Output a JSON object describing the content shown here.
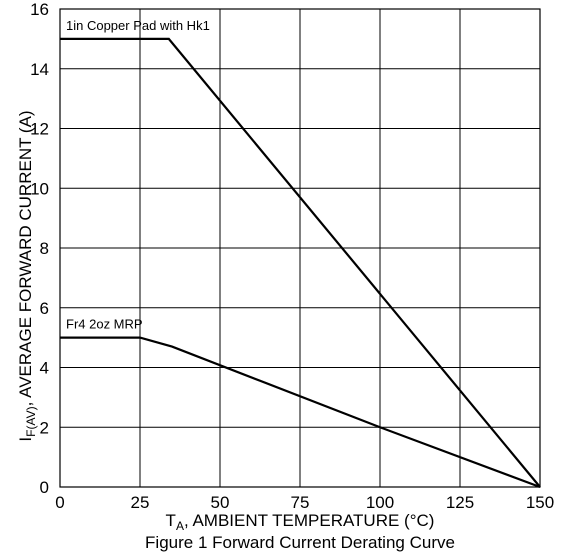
{
  "chart_data": {
    "type": "line",
    "xlabel_main": "T",
    "xlabel_sub": "A",
    "xlabel_rest": ", AMBIENT TEMPERATURE (°C)",
    "ylabel_main": "I",
    "ylabel_sub": "F(AV)",
    "ylabel_rest": ", AVERAGE FORWARD CURRENT (A)",
    "caption": "Figure 1 Forward Current Derating Curve",
    "xlim": [
      0,
      150
    ],
    "ylim": [
      0,
      16
    ],
    "x_ticks": [
      "0",
      "25",
      "50",
      "75",
      "100",
      "125",
      "150"
    ],
    "y_ticks": [
      "0",
      "2",
      "4",
      "6",
      "8",
      "10",
      "12",
      "14",
      "16"
    ],
    "grid": true,
    "series": [
      {
        "name": "1in Copper Pad with Hk1",
        "x": [
          0,
          34,
          150
        ],
        "y": [
          15,
          15,
          0
        ]
      },
      {
        "name": "Fr4 2oz MRP",
        "x": [
          0,
          25,
          35,
          100,
          150
        ],
        "y": [
          5,
          5,
          4.7,
          2,
          0
        ]
      }
    ]
  }
}
